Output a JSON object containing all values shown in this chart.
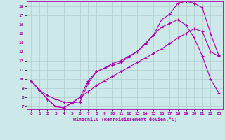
{
  "xlabel": "Windchill (Refroidissement éolien,°C)",
  "bg_color": "#cce8e8",
  "grid_color": "#b0cccc",
  "line_color": "#aa00aa",
  "xlim": [
    -0.5,
    23.5
  ],
  "ylim": [
    6.7,
    18.5
  ],
  "xticks": [
    0,
    1,
    2,
    3,
    4,
    5,
    6,
    7,
    8,
    9,
    10,
    11,
    12,
    13,
    14,
    15,
    16,
    17,
    18,
    19,
    20,
    21,
    22,
    23
  ],
  "yticks": [
    7,
    8,
    9,
    10,
    11,
    12,
    13,
    14,
    15,
    16,
    17,
    18
  ],
  "line1_x": [
    0,
    1,
    2,
    3,
    4,
    5,
    6,
    7,
    8,
    9,
    10,
    11,
    12,
    13,
    14,
    15,
    16,
    17,
    18,
    19,
    20,
    21,
    22,
    23
  ],
  "line1_y": [
    9.8,
    8.8,
    7.8,
    7.0,
    6.85,
    7.4,
    7.5,
    9.5,
    10.8,
    11.2,
    11.5,
    11.8,
    12.4,
    13.0,
    13.9,
    14.8,
    16.5,
    17.1,
    18.3,
    18.5,
    18.3,
    17.8,
    15.0,
    12.6
  ],
  "line2_x": [
    0,
    1,
    2,
    3,
    4,
    5,
    6,
    7,
    8,
    9,
    10,
    11,
    12,
    13,
    14,
    15,
    16,
    17,
    18,
    19,
    20,
    21,
    22,
    23
  ],
  "line2_y": [
    9.8,
    8.8,
    7.8,
    7.0,
    6.85,
    7.4,
    8.0,
    9.8,
    10.8,
    11.2,
    11.7,
    12.0,
    12.5,
    13.0,
    13.8,
    14.8,
    15.7,
    16.1,
    16.5,
    15.9,
    14.5,
    12.5,
    10.0,
    8.5
  ],
  "line3_x": [
    0,
    1,
    2,
    3,
    4,
    5,
    6,
    7,
    8,
    9,
    10,
    11,
    12,
    13,
    14,
    15,
    16,
    17,
    18,
    19,
    20,
    21,
    22,
    23
  ],
  "line3_y": [
    9.8,
    8.8,
    8.2,
    7.8,
    7.5,
    7.4,
    8.0,
    8.6,
    9.3,
    9.8,
    10.3,
    10.8,
    11.3,
    11.8,
    12.3,
    12.8,
    13.3,
    13.9,
    14.5,
    15.0,
    15.5,
    15.2,
    13.0,
    12.5
  ]
}
